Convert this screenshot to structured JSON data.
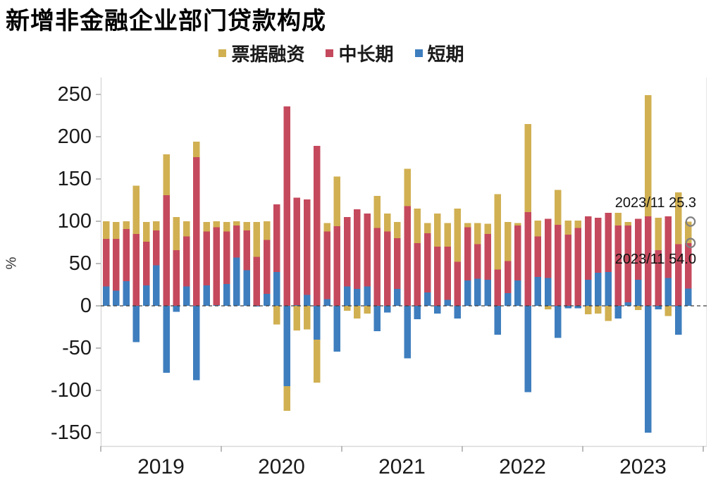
{
  "title": "新增非金融企业部门贷款构成",
  "legend": [
    {
      "label": "票据融资",
      "color": "#D1B052"
    },
    {
      "label": "中长期",
      "color": "#C5495D"
    },
    {
      "label": "短期",
      "color": "#3E7EBE"
    }
  ],
  "y_axis": {
    "unit": "%",
    "ticks": [
      250,
      200,
      150,
      100,
      50,
      0,
      -50,
      -100,
      -150
    ]
  },
  "x_axis": {
    "year_labels": [
      "2019",
      "2020",
      "2021",
      "2022",
      "2023"
    ]
  },
  "annotations": [
    {
      "text": "2023/11  25.3"
    },
    {
      "text": "2023/11  54.0"
    }
  ],
  "chart_data": {
    "type": "bar",
    "stacked": true,
    "title": "新增非金融企业部门贷款构成",
    "ylabel": "%",
    "ylim": [
      -150,
      250
    ],
    "grid": false,
    "legend_position": "top",
    "x": [
      "2019-01",
      "2019-02",
      "2019-03",
      "2019-04",
      "2019-05",
      "2019-06",
      "2019-07",
      "2019-08",
      "2019-09",
      "2019-10",
      "2019-11",
      "2019-12",
      "2020-01",
      "2020-02",
      "2020-03",
      "2020-04",
      "2020-05",
      "2020-06",
      "2020-07",
      "2020-08",
      "2020-09",
      "2020-10",
      "2020-11",
      "2020-12",
      "2021-01",
      "2021-02",
      "2021-03",
      "2021-04",
      "2021-05",
      "2021-06",
      "2021-07",
      "2021-08",
      "2021-09",
      "2021-10",
      "2021-11",
      "2021-12",
      "2022-01",
      "2022-02",
      "2022-03",
      "2022-04",
      "2022-05",
      "2022-06",
      "2022-07",
      "2022-08",
      "2022-09",
      "2022-10",
      "2022-11",
      "2022-12",
      "2023-01",
      "2023-02",
      "2023-03",
      "2023-04",
      "2023-05",
      "2023-06",
      "2023-07",
      "2023-08",
      "2023-09",
      "2023-10",
      "2023-11"
    ],
    "series": [
      {
        "name": "短期",
        "color": "#3E7EBE",
        "values": [
          23,
          18,
          29,
          -43,
          24,
          48,
          -79,
          -7,
          23,
          -88,
          24,
          1,
          26,
          57,
          42,
          -1,
          14,
          40,
          -95,
          1,
          13,
          -40,
          8,
          -54,
          23,
          20,
          23,
          -30,
          -8,
          20,
          -62,
          -16,
          16,
          -9,
          7,
          -15,
          30,
          32,
          31,
          -34,
          15,
          30,
          -102,
          34,
          33,
          -38,
          -3,
          -3,
          31,
          39,
          40,
          -15,
          4,
          31,
          -150,
          -4,
          33,
          -34,
          20.3
        ]
      },
      {
        "name": "中长期",
        "color": "#C5495D",
        "values": [
          56,
          61,
          62,
          85,
          52,
          41,
          131,
          66,
          59,
          176,
          64,
          92,
          62,
          38,
          47,
          58,
          64,
          80,
          236,
          127,
          113,
          189,
          80,
          94,
          82,
          94,
          86,
          92,
          88,
          60,
          118,
          74,
          70,
          70,
          63,
          52,
          63,
          41,
          54,
          43,
          38,
          65,
          111,
          48,
          70,
          96,
          84,
          92,
          75,
          65,
          70,
          95,
          91,
          72,
          106,
          66,
          73,
          73,
          54
        ]
      },
      {
        "name": "票据融资",
        "color": "#D1B052",
        "values": [
          21,
          20,
          9,
          57,
          23,
          11,
          48,
          39,
          18,
          18,
          11,
          7,
          11,
          5,
          10,
          41,
          22,
          -22,
          -29,
          -29,
          -28,
          -51,
          10,
          59,
          -6,
          -15,
          -9,
          38,
          21,
          19,
          44,
          41,
          12,
          39,
          28,
          63,
          5,
          25,
          12,
          89,
          46,
          3,
          104,
          19,
          -4,
          41,
          17,
          9,
          -10,
          -9,
          -18,
          15,
          4,
          -5,
          143,
          38,
          -12,
          61,
          25.3
        ]
      }
    ],
    "highlight": {
      "month": "2023/11",
      "medium_long_value": 54.0,
      "bills_value": 25.3
    }
  }
}
